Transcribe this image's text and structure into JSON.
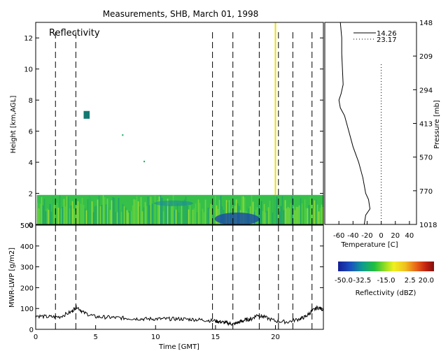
{
  "chart_data": {
    "title": "Measurements, SHB, March 01, 1998",
    "panels": [
      {
        "type": "heatmap",
        "label": "Reflectivity",
        "xlabel": "",
        "ylabel": "Height [km,AGL]",
        "xlim": [
          0,
          24
        ],
        "ylim": [
          0,
          13
        ],
        "yticks": [
          0,
          2,
          4,
          6,
          8,
          10,
          12
        ],
        "dashed_lines_x": [
          1.65,
          3.35,
          14.75,
          16.45,
          18.65,
          20.25,
          21.45,
          23.05
        ],
        "yellow_line_x": 20.0,
        "cloud_layer": {
          "x_start": 0.1,
          "x_end": 24.0,
          "top_km": 1.9
        },
        "features": [
          {
            "x": [
              4.0,
              4.5
            ],
            "y": [
              6.8,
              7.3
            ]
          },
          {
            "x": [
              7.2,
              7.3
            ],
            "y": [
              5.7,
              5.8
            ]
          },
          {
            "x": [
              9.0,
              9.1
            ],
            "y": [
              4.0,
              4.1
            ]
          }
        ]
      },
      {
        "type": "line",
        "label": "",
        "xlabel": "Time [GMT]",
        "ylabel": "MWR-LWP [g/m2]",
        "xlim": [
          0,
          24
        ],
        "ylim": [
          0,
          500
        ],
        "xticks": [
          0,
          5,
          10,
          15,
          20
        ],
        "yticks": [
          0,
          100,
          200,
          300,
          400,
          500
        ],
        "dashed_lines_x": [
          1.65,
          3.35,
          14.75,
          16.45,
          18.65,
          20.25,
          21.45,
          23.05
        ],
        "x": [
          0,
          1,
          2,
          3,
          3.4,
          4,
          5,
          6,
          7,
          8,
          9,
          10,
          11,
          12,
          13,
          14,
          15,
          15.5,
          16,
          16.5,
          17,
          17.5,
          18,
          18.5,
          19,
          20,
          21,
          22,
          22.5,
          23,
          23.5,
          24
        ],
        "y": [
          65,
          60,
          60,
          85,
          110,
          80,
          60,
          58,
          55,
          52,
          50,
          50,
          50,
          50,
          48,
          45,
          40,
          35,
          30,
          25,
          35,
          45,
          50,
          70,
          60,
          40,
          35,
          50,
          60,
          85,
          105,
          95
        ]
      },
      {
        "type": "line",
        "label": "",
        "xlabel": "Temperature [C]",
        "ylabel": "Pressure [mb]",
        "xlim": [
          -80,
          50
        ],
        "xticks": [
          -60,
          -40,
          -20,
          0,
          20,
          40
        ],
        "pressure_ticks": [
          "148",
          "209",
          "294",
          "413",
          "570",
          "770",
          "1018"
        ],
        "series": [
          {
            "name": "14.26",
            "style": "solid",
            "x": [
              -58,
              -56,
              -56,
              -55,
              -54,
              -57,
              -60,
              -58,
              -52,
              -46,
              -40,
              -32,
              -26,
              -22,
              -18,
              -16,
              -22,
              -24
            ],
            "y": [
              13,
              12,
              11,
              10,
              9,
              8.4,
              8.0,
              7.5,
              7,
              6,
              5,
              4,
              3,
              2,
              1.6,
              1.0,
              0.6,
              0
            ]
          },
          {
            "name": "23.17",
            "style": "dotted",
            "x": [
              0,
              0
            ],
            "y": [
              0,
              10.3
            ]
          }
        ]
      }
    ],
    "colorbar": {
      "label": "Reflectivity (dBZ)",
      "tick_labels": [
        "-50.0",
        "-32.5",
        "-15.0",
        "2.5",
        "20.0"
      ],
      "range": [
        -50,
        20
      ]
    }
  }
}
